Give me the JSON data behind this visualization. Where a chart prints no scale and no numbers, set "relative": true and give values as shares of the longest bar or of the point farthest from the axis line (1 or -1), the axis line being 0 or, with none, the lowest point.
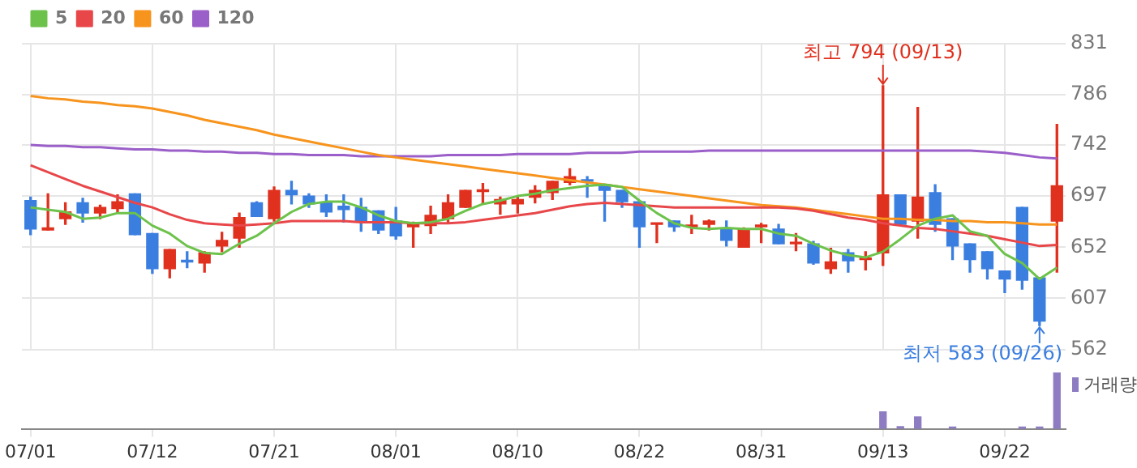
{
  "chart_data": [
    {
      "type": "candlestick",
      "categories": [
        "07/01",
        null,
        null,
        null,
        null,
        null,
        null,
        "07/12",
        null,
        null,
        null,
        null,
        null,
        null,
        "07/21",
        null,
        null,
        null,
        null,
        null,
        null,
        "08/01",
        null,
        null,
        null,
        null,
        null,
        null,
        "08/10",
        null,
        null,
        null,
        null,
        null,
        null,
        "08/22",
        null,
        null,
        null,
        null,
        null,
        null,
        "08/31",
        null,
        null,
        null,
        null,
        null,
        null,
        "09/13",
        null,
        null,
        null,
        null,
        null,
        null,
        "09/22",
        null,
        null,
        null
      ],
      "ohlc": [
        [
          693,
          696,
          663,
          668
        ],
        [
          667,
          699,
          667,
          669
        ],
        [
          677,
          691,
          672,
          683
        ],
        [
          691,
          695,
          674,
          682
        ],
        [
          682,
          689,
          677,
          687
        ],
        [
          686,
          698,
          683,
          692
        ],
        [
          699,
          699,
          663,
          663
        ],
        [
          664,
          664,
          629,
          633
        ],
        [
          633,
          650,
          625,
          650
        ],
        [
          640,
          648,
          634,
          639
        ],
        [
          638,
          648,
          630,
          647
        ],
        [
          653,
          665,
          648,
          658
        ],
        [
          660,
          682,
          652,
          678
        ],
        [
          691,
          692,
          679,
          679
        ],
        [
          677,
          705,
          675,
          702
        ],
        [
          702,
          710,
          690,
          698
        ],
        [
          697,
          699,
          687,
          690
        ],
        [
          691,
          698,
          679,
          683
        ],
        [
          688,
          698,
          674,
          685
        ],
        [
          687,
          695,
          666,
          675
        ],
        [
          684,
          684,
          664,
          667
        ],
        [
          675,
          687,
          659,
          662
        ],
        [
          670,
          674,
          652,
          673
        ],
        [
          671,
          688,
          664,
          680
        ],
        [
          677,
          698,
          674,
          691
        ],
        [
          687,
          702,
          687,
          702
        ],
        [
          701,
          708,
          690,
          702
        ],
        [
          690,
          696,
          681,
          694
        ],
        [
          690,
          696,
          682,
          694
        ],
        [
          696,
          706,
          691,
          702
        ],
        [
          700,
          710,
          694,
          710
        ],
        [
          709,
          721,
          707,
          714
        ],
        [
          711,
          714,
          696,
          710
        ],
        [
          707,
          707,
          675,
          702
        ],
        [
          702,
          702,
          687,
          692
        ],
        [
          692,
          692,
          652,
          670
        ],
        [
          672,
          673,
          656,
          673
        ],
        [
          675,
          675,
          666,
          670
        ],
        [
          670,
          680,
          664,
          671
        ],
        [
          672,
          676,
          667,
          675
        ],
        [
          668,
          675,
          653,
          658
        ],
        [
          652,
          669,
          652,
          668
        ],
        [
          670,
          673,
          656,
          671
        ],
        [
          668,
          672,
          655,
          655
        ],
        [
          655,
          664,
          649,
          656
        ],
        [
          655,
          657,
          637,
          638
        ],
        [
          633,
          651,
          629,
          639
        ],
        [
          647,
          650,
          630,
          640
        ],
        [
          641,
          648,
          632,
          641
        ],
        [
          647,
          794,
          636,
          698
        ],
        [
          698,
          698,
          672,
          672
        ],
        [
          675,
          775,
          660,
          696
        ],
        [
          700,
          707,
          666,
          672
        ],
        [
          677,
          677,
          641,
          653
        ],
        [
          655,
          655,
          630,
          641
        ],
        [
          648,
          648,
          624,
          633
        ],
        [
          631,
          631,
          612,
          624
        ],
        [
          687,
          687,
          615,
          623
        ],
        [
          625,
          625,
          583,
          587
        ],
        [
          675,
          760,
          630,
          706
        ]
      ],
      "series": [
        {
          "name": "5",
          "type": "line",
          "color": "#6cc24a",
          "values": [
            687,
            685,
            683,
            677,
            678,
            682,
            682,
            671,
            664,
            653,
            647,
            646,
            655,
            662,
            673,
            683,
            690,
            692,
            692,
            687,
            680,
            675,
            673,
            674,
            677,
            684,
            690,
            693,
            697,
            699,
            702,
            704,
            706,
            707,
            705,
            693,
            682,
            673,
            669,
            668,
            669,
            668,
            668,
            664,
            662,
            655,
            649,
            645,
            643,
            648,
            659,
            671,
            677,
            680,
            666,
            662,
            646,
            638,
            624,
            634
          ]
        },
        {
          "name": "20",
          "type": "line",
          "color": "#e8474a",
          "values": [
            724,
            718,
            712,
            706,
            701,
            696,
            691,
            687,
            681,
            676,
            673,
            672,
            671,
            672,
            673,
            675,
            675,
            675,
            675,
            674,
            674,
            674,
            673,
            673,
            673,
            674,
            676,
            678,
            680,
            682,
            685,
            688,
            690,
            691,
            690,
            689,
            688,
            687,
            687,
            687,
            687,
            687,
            687,
            687,
            686,
            684,
            681,
            678,
            676,
            673,
            671,
            669,
            668,
            666,
            664,
            662,
            659,
            656,
            653,
            654
          ]
        },
        {
          "name": "60",
          "type": "line",
          "color": "#f7941d",
          "values": [
            785,
            783,
            782,
            780,
            779,
            777,
            776,
            774,
            771,
            768,
            764,
            761,
            758,
            755,
            751,
            748,
            745,
            742,
            739,
            736,
            733,
            731,
            729,
            727,
            725,
            723,
            721,
            719,
            717,
            715,
            713,
            711,
            709,
            707,
            705,
            703,
            701,
            699,
            697,
            695,
            693,
            691,
            689,
            688,
            687,
            685,
            683,
            681,
            679,
            677,
            677,
            676,
            676,
            675,
            675,
            674,
            674,
            673,
            672,
            672
          ]
        },
        {
          "name": "120",
          "type": "line",
          "color": "#9b5fc9",
          "values": [
            742,
            741,
            741,
            740,
            740,
            739,
            738,
            738,
            737,
            737,
            736,
            736,
            735,
            735,
            734,
            734,
            733,
            733,
            733,
            732,
            732,
            732,
            732,
            732,
            733,
            733,
            733,
            733,
            734,
            734,
            734,
            734,
            735,
            735,
            735,
            736,
            736,
            736,
            736,
            737,
            737,
            737,
            737,
            737,
            737,
            737,
            737,
            737,
            737,
            737,
            737,
            737,
            737,
            737,
            737,
            736,
            735,
            733,
            731,
            730
          ]
        }
      ],
      "ylim": [
        562,
        831
      ],
      "yticks": [
        562,
        607,
        652,
        697,
        742,
        786,
        831
      ],
      "grid": true,
      "legend": "top left",
      "tick_labels": "y",
      "annotations": [
        {
          "text": "최고 794 (09/13)",
          "x": "09/13",
          "y": 794
        },
        "최저 583 (09/26)"
      ]
    },
    {
      "type": "bar",
      "categories": [
        "07/01",
        null,
        null,
        null,
        null,
        null,
        null,
        "07/12",
        null,
        null,
        null,
        null,
        null,
        null,
        "07/21",
        null,
        null,
        null,
        null,
        null,
        null,
        "08/01",
        null,
        null,
        null,
        null,
        null,
        null,
        "08/10",
        null,
        null,
        null,
        null,
        null,
        null,
        "08/22",
        null,
        null,
        null,
        null,
        null,
        null,
        "08/31",
        null,
        null,
        null,
        null,
        null,
        null,
        "09/13",
        null,
        null,
        null,
        null,
        null,
        null,
        "09/22",
        null,
        null,
        null
      ],
      "series": [
        {
          "name": "거래량",
          "color": "#8e7cc3",
          "values": [
            null,
            null,
            null,
            null,
            null,
            null,
            null,
            null,
            null,
            null,
            null,
            null,
            null,
            null,
            null,
            null,
            null,
            null,
            null,
            null,
            null,
            null,
            null,
            null,
            null,
            null,
            null,
            null,
            null,
            null,
            null,
            null,
            null,
            null,
            null,
            null,
            null,
            null,
            null,
            null,
            null,
            null,
            null,
            null,
            null,
            null,
            null,
            null,
            null,
            0.3,
            0.04,
            0.21,
            null,
            0.03,
            null,
            null,
            null,
            0.03,
            0.03,
            1
          ]
        }
      ],
      "relative": true,
      "legend": "top right",
      "tick_labels": "x"
    }
  ]
}
